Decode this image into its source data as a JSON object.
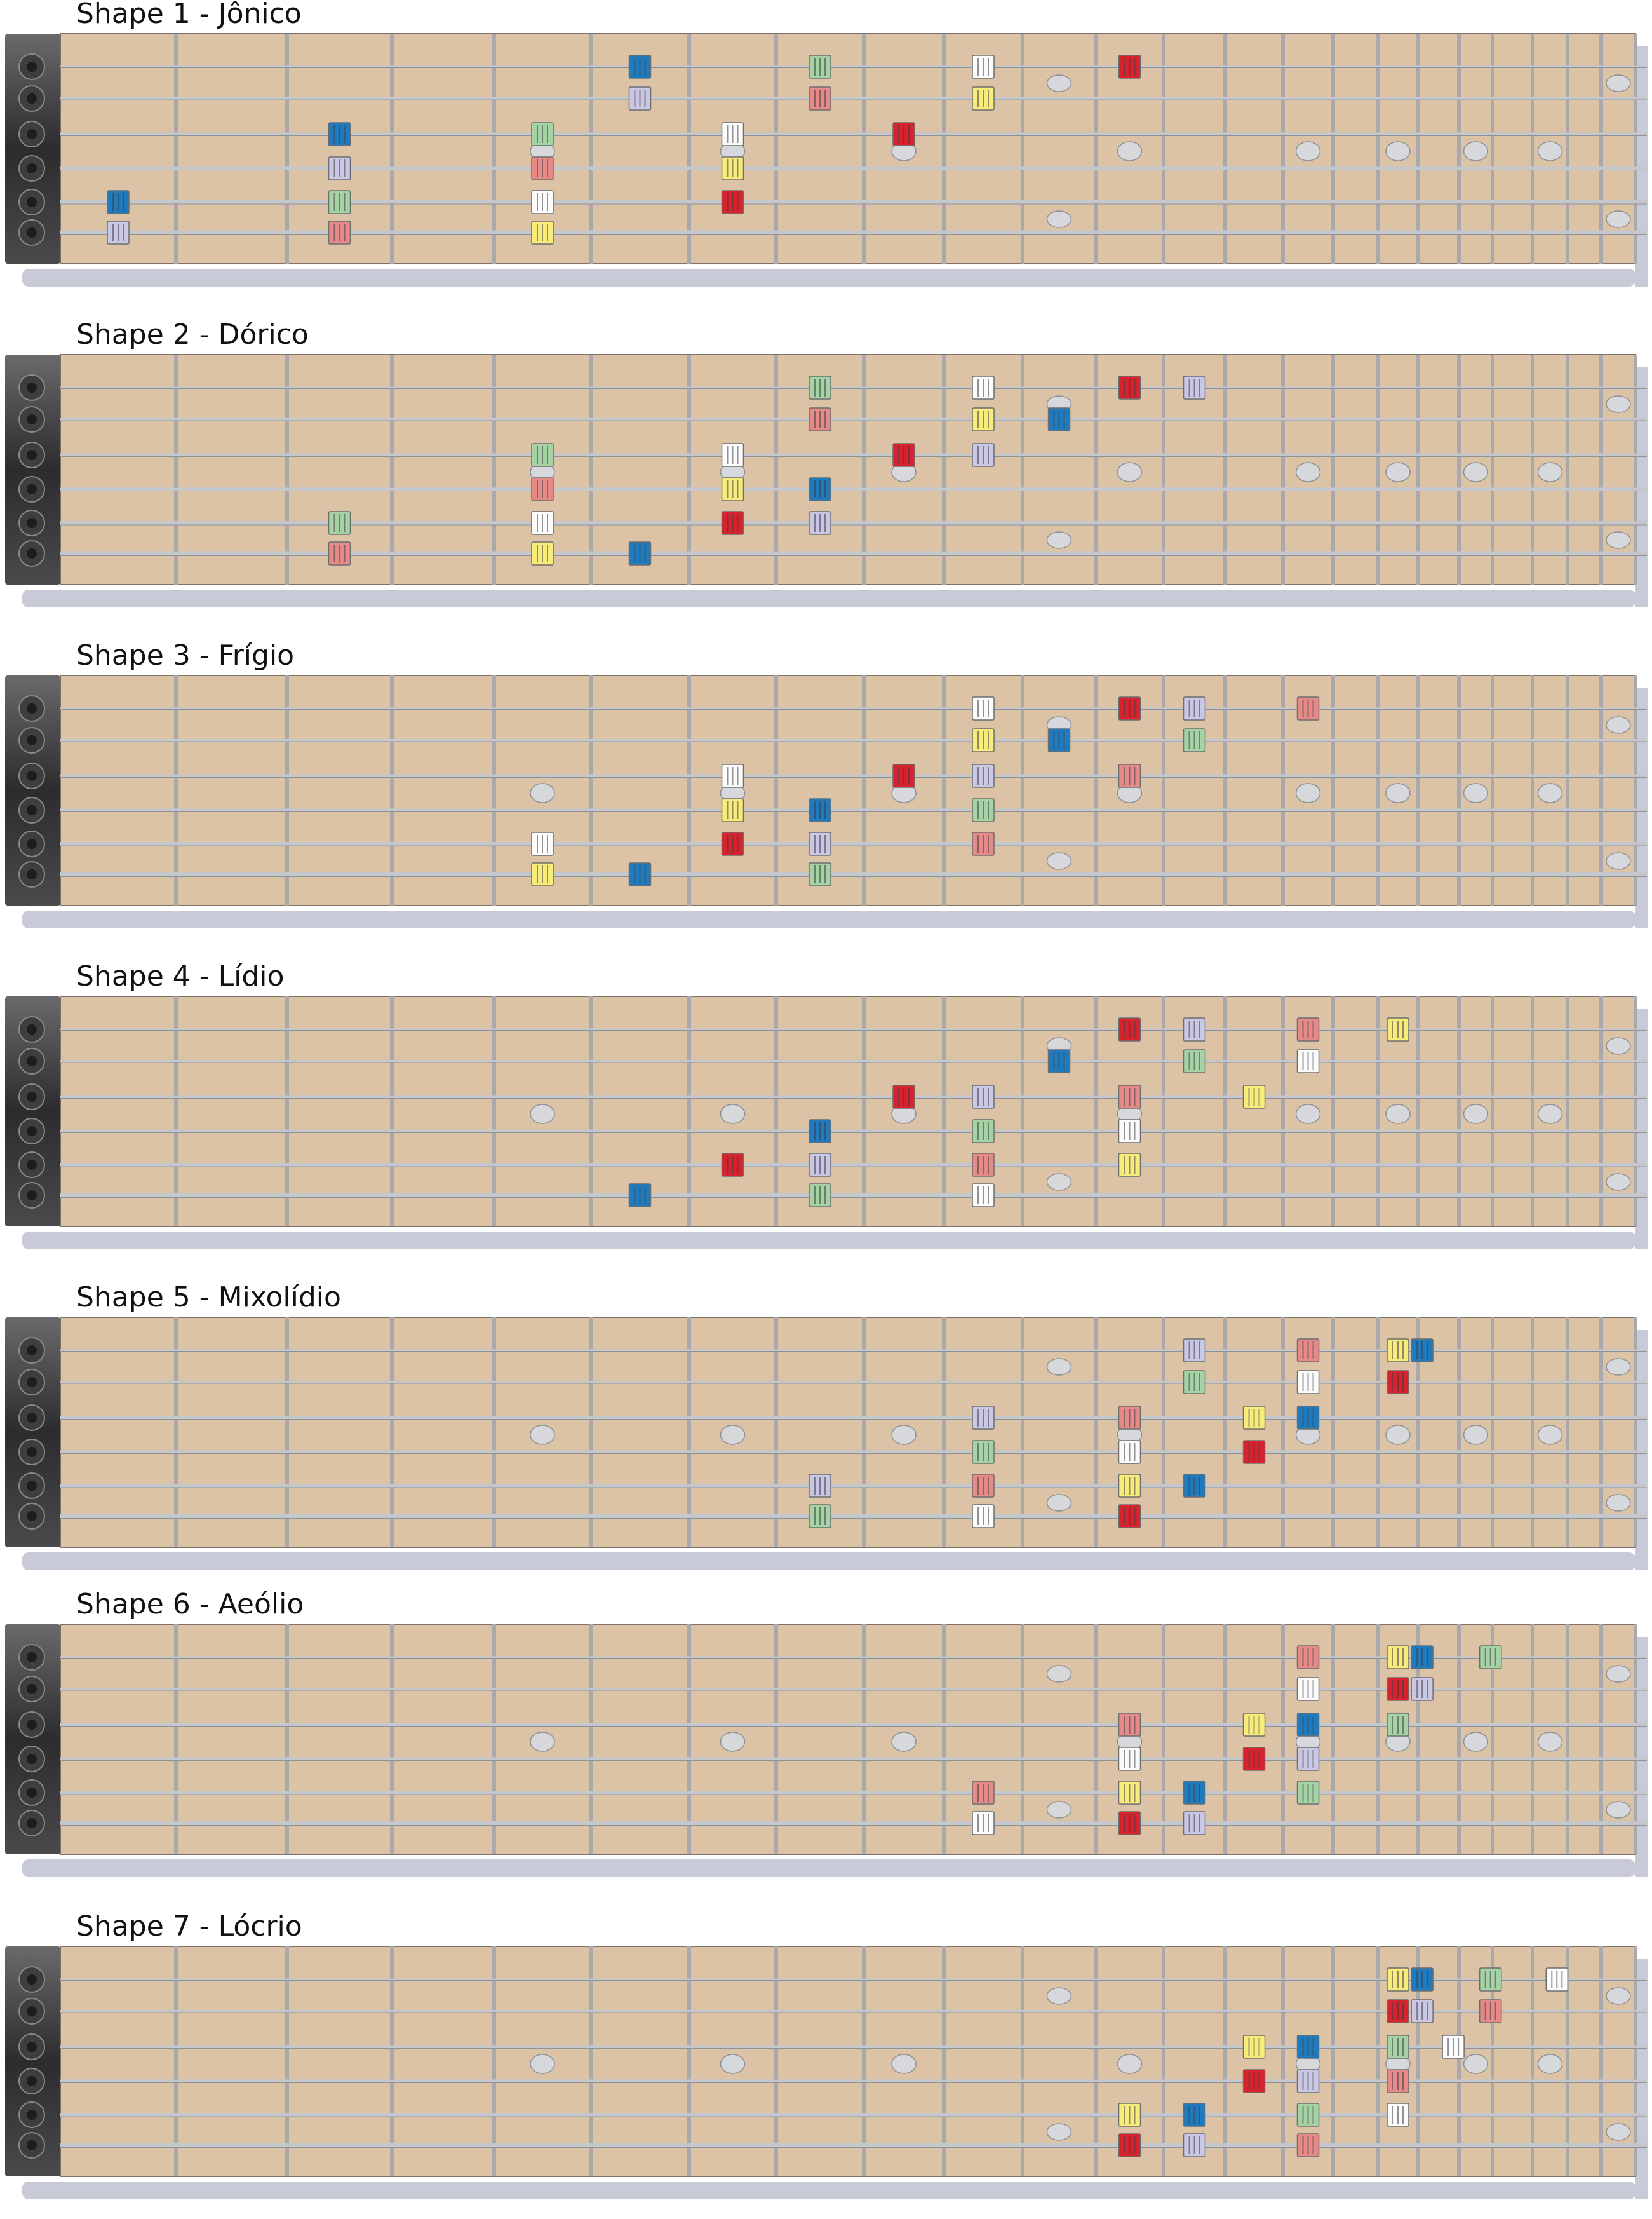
{
  "colors": {
    "fretboard": "#dcc3a6",
    "fret_wire": "#a9a9ad",
    "string": "#c4c7cc",
    "headstock": "#3a3a3c",
    "shadow": "#9a9fb8",
    "inlay": "#d6d8db",
    "note_red": "#d8222e",
    "note_blue": "#1f7bbd",
    "note_green": "#a6d3a4",
    "note_salmon": "#e58a86",
    "note_white": "#fbfbfb",
    "note_yellow": "#f7ec7a",
    "note_lilac": "#c9c7e3"
  },
  "inlays": {
    "single": [
      5,
      7,
      9,
      12,
      15,
      17,
      19,
      21
    ],
    "double": [
      11,
      23
    ]
  },
  "shapes": [
    {
      "title": "Shape 1 - Jônico",
      "notes": [
        {
          "s": 1,
          "f": 6,
          "c": "blue"
        },
        {
          "s": 1,
          "f": 8,
          "c": "green"
        },
        {
          "s": 1,
          "f": 10,
          "c": "white"
        },
        {
          "s": 1,
          "f": 12,
          "c": "red"
        },
        {
          "s": 2,
          "f": 6,
          "c": "lilac"
        },
        {
          "s": 2,
          "f": 8,
          "c": "salmon"
        },
        {
          "s": 2,
          "f": 10,
          "c": "yellow"
        },
        {
          "s": 3,
          "f": 3,
          "c": "blue"
        },
        {
          "s": 3,
          "f": 5,
          "c": "green"
        },
        {
          "s": 3,
          "f": 7,
          "c": "white"
        },
        {
          "s": 3,
          "f": 9,
          "c": "red"
        },
        {
          "s": 4,
          "f": 3,
          "c": "lilac"
        },
        {
          "s": 4,
          "f": 5,
          "c": "salmon"
        },
        {
          "s": 4,
          "f": 7,
          "c": "yellow"
        },
        {
          "s": 5,
          "f": 1,
          "c": "blue"
        },
        {
          "s": 5,
          "f": 3,
          "c": "green"
        },
        {
          "s": 5,
          "f": 5,
          "c": "white"
        },
        {
          "s": 5,
          "f": 7,
          "c": "red"
        },
        {
          "s": 6,
          "f": 1,
          "c": "lilac"
        },
        {
          "s": 6,
          "f": 3,
          "c": "salmon"
        },
        {
          "s": 6,
          "f": 5,
          "c": "yellow"
        }
      ]
    },
    {
      "title": "Shape 2 - Dórico",
      "notes": [
        {
          "s": 1,
          "f": 8,
          "c": "green"
        },
        {
          "s": 1,
          "f": 10,
          "c": "white"
        },
        {
          "s": 1,
          "f": 12,
          "c": "red"
        },
        {
          "s": 1,
          "f": 13,
          "c": "lilac"
        },
        {
          "s": 2,
          "f": 8,
          "c": "salmon"
        },
        {
          "s": 2,
          "f": 10,
          "c": "yellow"
        },
        {
          "s": 2,
          "f": 11,
          "c": "blue"
        },
        {
          "s": 3,
          "f": 5,
          "c": "green"
        },
        {
          "s": 3,
          "f": 7,
          "c": "white"
        },
        {
          "s": 3,
          "f": 9,
          "c": "red"
        },
        {
          "s": 3,
          "f": 10,
          "c": "lilac"
        },
        {
          "s": 4,
          "f": 5,
          "c": "salmon"
        },
        {
          "s": 4,
          "f": 7,
          "c": "yellow"
        },
        {
          "s": 4,
          "f": 8,
          "c": "blue"
        },
        {
          "s": 5,
          "f": 3,
          "c": "green"
        },
        {
          "s": 5,
          "f": 5,
          "c": "white"
        },
        {
          "s": 5,
          "f": 7,
          "c": "red"
        },
        {
          "s": 5,
          "f": 8,
          "c": "lilac"
        },
        {
          "s": 6,
          "f": 3,
          "c": "salmon"
        },
        {
          "s": 6,
          "f": 5,
          "c": "yellow"
        },
        {
          "s": 6,
          "f": 6,
          "c": "blue"
        }
      ]
    },
    {
      "title": "Shape 3 - Frígio",
      "notes": [
        {
          "s": 1,
          "f": 10,
          "c": "white"
        },
        {
          "s": 1,
          "f": 12,
          "c": "red"
        },
        {
          "s": 1,
          "f": 13,
          "c": "lilac"
        },
        {
          "s": 1,
          "f": 15,
          "c": "salmon"
        },
        {
          "s": 2,
          "f": 10,
          "c": "yellow"
        },
        {
          "s": 2,
          "f": 11,
          "c": "blue"
        },
        {
          "s": 2,
          "f": 13,
          "c": "green"
        },
        {
          "s": 3,
          "f": 7,
          "c": "white"
        },
        {
          "s": 3,
          "f": 9,
          "c": "red"
        },
        {
          "s": 3,
          "f": 10,
          "c": "lilac"
        },
        {
          "s": 3,
          "f": 12,
          "c": "salmon"
        },
        {
          "s": 4,
          "f": 7,
          "c": "yellow"
        },
        {
          "s": 4,
          "f": 8,
          "c": "blue"
        },
        {
          "s": 4,
          "f": 10,
          "c": "green"
        },
        {
          "s": 5,
          "f": 5,
          "c": "white"
        },
        {
          "s": 5,
          "f": 7,
          "c": "red"
        },
        {
          "s": 5,
          "f": 8,
          "c": "lilac"
        },
        {
          "s": 5,
          "f": 10,
          "c": "salmon"
        },
        {
          "s": 6,
          "f": 5,
          "c": "yellow"
        },
        {
          "s": 6,
          "f": 6,
          "c": "blue"
        },
        {
          "s": 6,
          "f": 8,
          "c": "green"
        }
      ]
    },
    {
      "title": "Shape 4 - Lídio",
      "notes": [
        {
          "s": 1,
          "f": 12,
          "c": "red"
        },
        {
          "s": 1,
          "f": 13,
          "c": "lilac"
        },
        {
          "s": 1,
          "f": 15,
          "c": "salmon"
        },
        {
          "s": 1,
          "f": 17,
          "c": "yellow"
        },
        {
          "s": 2,
          "f": 11,
          "c": "blue"
        },
        {
          "s": 2,
          "f": 13,
          "c": "green"
        },
        {
          "s": 2,
          "f": 15,
          "c": "white"
        },
        {
          "s": 3,
          "f": 9,
          "c": "red"
        },
        {
          "s": 3,
          "f": 10,
          "c": "lilac"
        },
        {
          "s": 3,
          "f": 12,
          "c": "salmon"
        },
        {
          "s": 3,
          "f": 14,
          "c": "yellow"
        },
        {
          "s": 4,
          "f": 8,
          "c": "blue"
        },
        {
          "s": 4,
          "f": 10,
          "c": "green"
        },
        {
          "s": 4,
          "f": 12,
          "c": "white"
        },
        {
          "s": 5,
          "f": 7,
          "c": "red"
        },
        {
          "s": 5,
          "f": 8,
          "c": "lilac"
        },
        {
          "s": 5,
          "f": 10,
          "c": "salmon"
        },
        {
          "s": 5,
          "f": 12,
          "c": "yellow"
        },
        {
          "s": 6,
          "f": 6,
          "c": "blue"
        },
        {
          "s": 6,
          "f": 8,
          "c": "green"
        },
        {
          "s": 6,
          "f": 10,
          "c": "white"
        }
      ]
    },
    {
      "title": "Shape 5 - Mixolídio",
      "notes": [
        {
          "s": 1,
          "f": 13,
          "c": "lilac"
        },
        {
          "s": 1,
          "f": 15,
          "c": "salmon"
        },
        {
          "s": 1,
          "f": 17,
          "c": "yellow"
        },
        {
          "s": 1,
          "f": 17.6,
          "c": "blue"
        },
        {
          "s": 2,
          "f": 13,
          "c": "green"
        },
        {
          "s": 2,
          "f": 15,
          "c": "white"
        },
        {
          "s": 2,
          "f": 17,
          "c": "red"
        },
        {
          "s": 3,
          "f": 10,
          "c": "lilac"
        },
        {
          "s": 3,
          "f": 12,
          "c": "salmon"
        },
        {
          "s": 3,
          "f": 14,
          "c": "yellow"
        },
        {
          "s": 3,
          "f": 15,
          "c": "blue"
        },
        {
          "s": 4,
          "f": 10,
          "c": "green"
        },
        {
          "s": 4,
          "f": 12,
          "c": "white"
        },
        {
          "s": 4,
          "f": 14,
          "c": "red"
        },
        {
          "s": 5,
          "f": 8,
          "c": "lilac"
        },
        {
          "s": 5,
          "f": 10,
          "c": "salmon"
        },
        {
          "s": 5,
          "f": 12,
          "c": "yellow"
        },
        {
          "s": 5,
          "f": 13,
          "c": "blue"
        },
        {
          "s": 6,
          "f": 8,
          "c": "green"
        },
        {
          "s": 6,
          "f": 10,
          "c": "white"
        },
        {
          "s": 6,
          "f": 12,
          "c": "red"
        }
      ]
    },
    {
      "title": "Shape 6 - Aeólio",
      "notes": [
        {
          "s": 1,
          "f": 15,
          "c": "salmon"
        },
        {
          "s": 1,
          "f": 17,
          "c": "yellow"
        },
        {
          "s": 1,
          "f": 17.6,
          "c": "blue"
        },
        {
          "s": 1,
          "f": 19.4,
          "c": "green"
        },
        {
          "s": 2,
          "f": 15,
          "c": "white"
        },
        {
          "s": 2,
          "f": 17,
          "c": "red"
        },
        {
          "s": 2,
          "f": 17.6,
          "c": "lilac"
        },
        {
          "s": 3,
          "f": 12,
          "c": "salmon"
        },
        {
          "s": 3,
          "f": 14,
          "c": "yellow"
        },
        {
          "s": 3,
          "f": 15,
          "c": "blue"
        },
        {
          "s": 3,
          "f": 17,
          "c": "green"
        },
        {
          "s": 4,
          "f": 12,
          "c": "white"
        },
        {
          "s": 4,
          "f": 14,
          "c": "red"
        },
        {
          "s": 4,
          "f": 15,
          "c": "lilac"
        },
        {
          "s": 5,
          "f": 10,
          "c": "salmon"
        },
        {
          "s": 5,
          "f": 12,
          "c": "yellow"
        },
        {
          "s": 5,
          "f": 13,
          "c": "blue"
        },
        {
          "s": 5,
          "f": 15,
          "c": "green"
        },
        {
          "s": 6,
          "f": 10,
          "c": "white"
        },
        {
          "s": 6,
          "f": 12,
          "c": "red"
        },
        {
          "s": 6,
          "f": 13,
          "c": "lilac"
        }
      ]
    },
    {
      "title": "Shape 7 - Lócrio",
      "notes": [
        {
          "s": 1,
          "f": 17,
          "c": "yellow"
        },
        {
          "s": 1,
          "f": 17.6,
          "c": "blue"
        },
        {
          "s": 1,
          "f": 19.4,
          "c": "green"
        },
        {
          "s": 1,
          "f": 21.2,
          "c": "white"
        },
        {
          "s": 2,
          "f": 17,
          "c": "red"
        },
        {
          "s": 2,
          "f": 17.6,
          "c": "lilac"
        },
        {
          "s": 2,
          "f": 19.4,
          "c": "salmon"
        },
        {
          "s": 3,
          "f": 14,
          "c": "yellow"
        },
        {
          "s": 3,
          "f": 15,
          "c": "blue"
        },
        {
          "s": 3,
          "f": 17,
          "c": "green"
        },
        {
          "s": 3,
          "f": 18.4,
          "c": "white"
        },
        {
          "s": 4,
          "f": 14,
          "c": "red"
        },
        {
          "s": 4,
          "f": 15,
          "c": "lilac"
        },
        {
          "s": 4,
          "f": 17,
          "c": "salmon"
        },
        {
          "s": 5,
          "f": 12,
          "c": "yellow"
        },
        {
          "s": 5,
          "f": 13,
          "c": "blue"
        },
        {
          "s": 5,
          "f": 15,
          "c": "green"
        },
        {
          "s": 5,
          "f": 17,
          "c": "white"
        },
        {
          "s": 6,
          "f": 12,
          "c": "red"
        },
        {
          "s": 6,
          "f": 13,
          "c": "lilac"
        },
        {
          "s": 6,
          "f": 15,
          "c": "salmon"
        }
      ]
    }
  ]
}
